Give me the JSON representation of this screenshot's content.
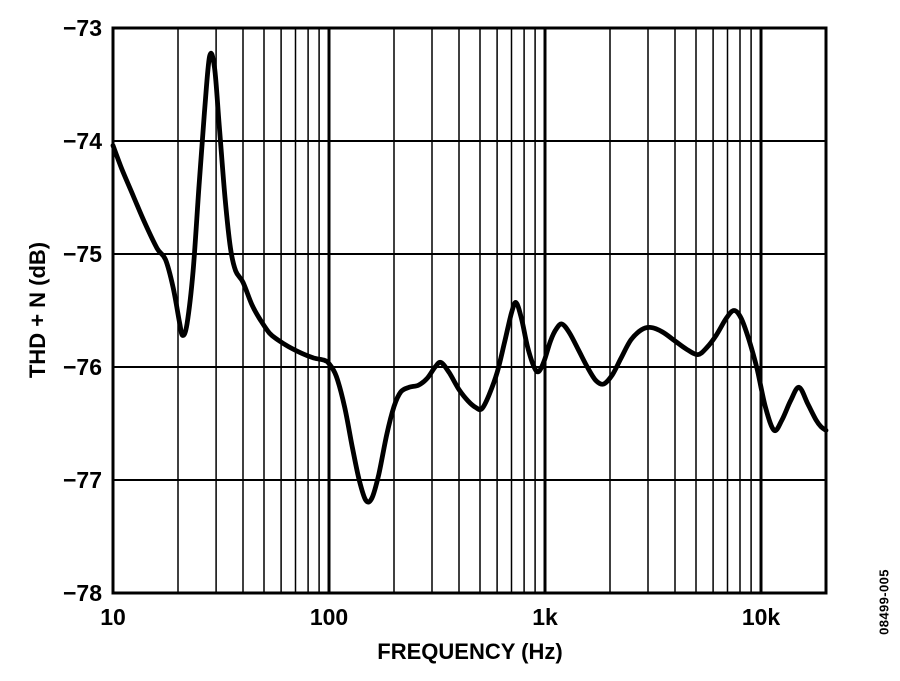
{
  "figure_code": "08499-005",
  "colors": {
    "line": "#000000",
    "grid": "#000000",
    "background": "#ffffff"
  },
  "chart_data": {
    "type": "line",
    "title": "",
    "xlabel": "FREQUENCY (Hz)",
    "ylabel": "THD + N (dB)",
    "x_scale": "log",
    "xlim": [
      10,
      20000
    ],
    "ylim": [
      -78,
      -73
    ],
    "grid": {
      "horizontal_step_db": 1,
      "vertical": "log decades with 2-9 minor lines",
      "major_verticals": [
        100,
        1000,
        10000
      ]
    },
    "legend": null,
    "x_ticks": [
      {
        "value": 10,
        "label": "10"
      },
      {
        "value": 100,
        "label": "100"
      },
      {
        "value": 1000,
        "label": "1k"
      },
      {
        "value": 10000,
        "label": "10k"
      }
    ],
    "y_ticks": [
      {
        "value": -73,
        "label": "−73"
      },
      {
        "value": -74,
        "label": "−74"
      },
      {
        "value": -75,
        "label": "−75"
      },
      {
        "value": -76,
        "label": "−76"
      },
      {
        "value": -77,
        "label": "−77"
      },
      {
        "value": -78,
        "label": "−78"
      }
    ],
    "series": [
      {
        "name": "THD + N",
        "points": [
          [
            10,
            -74.04
          ],
          [
            11,
            -74.25
          ],
          [
            12.5,
            -74.5
          ],
          [
            14,
            -74.72
          ],
          [
            16,
            -74.95
          ],
          [
            17.5,
            -75.05
          ],
          [
            19,
            -75.3
          ],
          [
            20.3,
            -75.6
          ],
          [
            21,
            -75.72
          ],
          [
            22,
            -75.62
          ],
          [
            23.5,
            -75.15
          ],
          [
            25,
            -74.4
          ],
          [
            26.5,
            -73.75
          ],
          [
            28,
            -73.25
          ],
          [
            29.5,
            -73.35
          ],
          [
            31,
            -73.85
          ],
          [
            33,
            -74.5
          ],
          [
            35,
            -74.95
          ],
          [
            37,
            -75.15
          ],
          [
            40,
            -75.25
          ],
          [
            44,
            -75.45
          ],
          [
            48,
            -75.58
          ],
          [
            53,
            -75.7
          ],
          [
            58,
            -75.76
          ],
          [
            65,
            -75.82
          ],
          [
            75,
            -75.88
          ],
          [
            85,
            -75.92
          ],
          [
            95,
            -75.94
          ],
          [
            100,
            -75.97
          ],
          [
            108,
            -76.08
          ],
          [
            118,
            -76.35
          ],
          [
            128,
            -76.7
          ],
          [
            138,
            -77.0
          ],
          [
            148,
            -77.18
          ],
          [
            158,
            -77.16
          ],
          [
            170,
            -76.95
          ],
          [
            185,
            -76.6
          ],
          [
            200,
            -76.35
          ],
          [
            215,
            -76.22
          ],
          [
            235,
            -76.18
          ],
          [
            260,
            -76.16
          ],
          [
            285,
            -76.1
          ],
          [
            310,
            -76.0
          ],
          [
            330,
            -75.96
          ],
          [
            360,
            -76.05
          ],
          [
            400,
            -76.2
          ],
          [
            440,
            -76.3
          ],
          [
            480,
            -76.36
          ],
          [
            510,
            -76.37
          ],
          [
            550,
            -76.25
          ],
          [
            600,
            -76.05
          ],
          [
            650,
            -75.78
          ],
          [
            700,
            -75.52
          ],
          [
            735,
            -75.43
          ],
          [
            780,
            -75.58
          ],
          [
            830,
            -75.82
          ],
          [
            890,
            -76.0
          ],
          [
            935,
            -76.04
          ],
          [
            990,
            -75.95
          ],
          [
            1060,
            -75.77
          ],
          [
            1130,
            -75.66
          ],
          [
            1200,
            -75.62
          ],
          [
            1300,
            -75.7
          ],
          [
            1430,
            -75.85
          ],
          [
            1570,
            -76.0
          ],
          [
            1720,
            -76.12
          ],
          [
            1870,
            -76.15
          ],
          [
            2050,
            -76.07
          ],
          [
            2250,
            -75.92
          ],
          [
            2500,
            -75.76
          ],
          [
            2800,
            -75.67
          ],
          [
            3100,
            -75.65
          ],
          [
            3500,
            -75.69
          ],
          [
            4000,
            -75.77
          ],
          [
            4500,
            -75.84
          ],
          [
            5100,
            -75.89
          ],
          [
            5600,
            -75.83
          ],
          [
            6200,
            -75.72
          ],
          [
            6900,
            -75.57
          ],
          [
            7500,
            -75.5
          ],
          [
            8100,
            -75.57
          ],
          [
            8800,
            -75.76
          ],
          [
            9600,
            -76.02
          ],
          [
            10500,
            -76.36
          ],
          [
            11500,
            -76.56
          ],
          [
            12500,
            -76.47
          ],
          [
            13700,
            -76.3
          ],
          [
            15000,
            -76.18
          ],
          [
            16500,
            -76.33
          ],
          [
            18000,
            -76.47
          ],
          [
            19000,
            -76.53
          ],
          [
            20000,
            -76.56
          ]
        ]
      }
    ]
  }
}
